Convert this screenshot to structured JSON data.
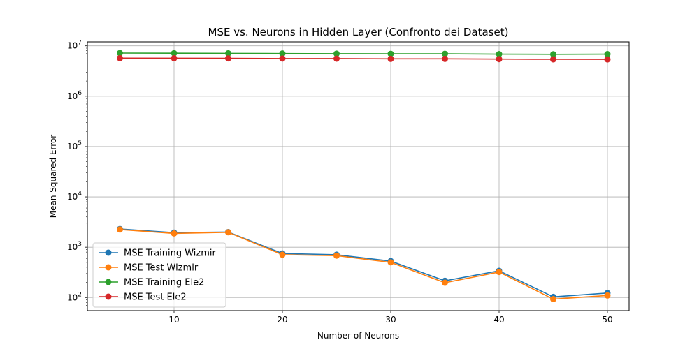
{
  "chart_data": {
    "type": "line",
    "title": "MSE vs. Neurons in Hidden Layer (Confronto dei Dataset)",
    "xlabel": "Number of Neurons",
    "ylabel": "Mean Squared Error",
    "yscale": "log",
    "xlim": [
      2,
      52
    ],
    "ylim": [
      55,
      12000000
    ],
    "x_ticks": [
      10,
      20,
      30,
      40,
      50
    ],
    "y_ticks": [
      {
        "value": 100,
        "base": "10",
        "exp": "2"
      },
      {
        "value": 1000,
        "base": "10",
        "exp": "3"
      },
      {
        "value": 10000,
        "base": "10",
        "exp": "4"
      },
      {
        "value": 100000,
        "base": "10",
        "exp": "5"
      },
      {
        "value": 1000000,
        "base": "10",
        "exp": "6"
      },
      {
        "value": 10000000,
        "base": "10",
        "exp": "7"
      }
    ],
    "grid": true,
    "legend_position": "lower-left",
    "x": [
      5,
      10,
      15,
      20,
      25,
      30,
      35,
      40,
      45,
      50
    ],
    "series": [
      {
        "name": "MSE Training Wizmir",
        "color": "#1f77b4",
        "values": [
          2300,
          1950,
          2000,
          750,
          710,
          530,
          215,
          340,
          103,
          123
        ]
      },
      {
        "name": "MSE Test Wizmir",
        "color": "#ff7f0e",
        "values": [
          2250,
          1880,
          1980,
          710,
          680,
          500,
          197,
          322,
          93,
          110
        ]
      },
      {
        "name": "MSE Training Ele2",
        "color": "#2ca02c",
        "values": [
          7200000,
          7150000,
          7100000,
          7050000,
          7000000,
          6950000,
          6950000,
          6850000,
          6800000,
          6850000
        ]
      },
      {
        "name": "MSE Test Ele2",
        "color": "#d62728",
        "values": [
          5700000,
          5680000,
          5650000,
          5600000,
          5580000,
          5520000,
          5520000,
          5450000,
          5400000,
          5380000
        ]
      }
    ]
  }
}
